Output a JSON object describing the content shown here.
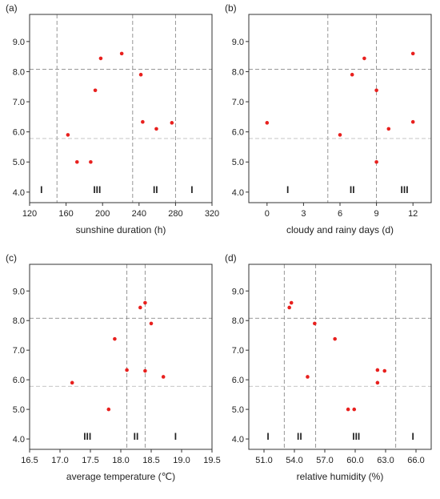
{
  "chart_data": [
    {
      "type": "scatter",
      "panel_label": "(a)",
      "xlabel": "sunshine duration (h)",
      "ylabel": "",
      "xlim": [
        120,
        320
      ],
      "ylim": [
        3.65,
        9.9
      ],
      "x_ticks": [
        120,
        160,
        200,
        240,
        280,
        320
      ],
      "x_tick_labels": [
        "120",
        "160",
        "200",
        "240",
        "280",
        "320"
      ],
      "y_ticks": [
        4,
        5,
        6,
        7,
        8,
        9
      ],
      "y_tick_labels": [
        "4.0",
        "5.0",
        "6.0",
        "7.0",
        "8.0",
        "9.0"
      ],
      "x": [
        162,
        172,
        187,
        192,
        198,
        221,
        242,
        244,
        259,
        276
      ],
      "y": [
        5.9,
        5.0,
        5.0,
        7.38,
        8.44,
        8.6,
        7.9,
        6.33,
        6.1,
        6.3
      ],
      "vlines": [
        150,
        233,
        280
      ],
      "hlines": [
        5.78,
        8.08
      ],
      "zones": [
        {
          "x": 133,
          "label": "I"
        },
        {
          "x": 194,
          "label": "III"
        },
        {
          "x": 258,
          "label": "II"
        },
        {
          "x": 298,
          "label": "I"
        }
      ]
    },
    {
      "type": "scatter",
      "panel_label": "(b)",
      "xlabel": "cloudy and rainy days (d)",
      "ylabel": "",
      "xlim": [
        -1.5,
        13.5
      ],
      "ylim": [
        3.65,
        9.9
      ],
      "x_ticks": [
        0,
        3,
        6,
        9,
        12
      ],
      "x_tick_labels": [
        "0",
        "3",
        "6",
        "9",
        "12"
      ],
      "y_ticks": [
        4,
        5,
        6,
        7,
        8,
        9
      ],
      "y_tick_labels": [
        "4.0",
        "5.0",
        "6.0",
        "7.0",
        "8.0",
        "9.0"
      ],
      "x": [
        0,
        6,
        7,
        8,
        9,
        9,
        10,
        12,
        12
      ],
      "y": [
        6.3,
        5.9,
        7.9,
        8.44,
        7.38,
        5.0,
        6.1,
        8.6,
        6.33
      ],
      "vlines": [
        5,
        9
      ],
      "hlines": [
        5.78,
        8.08
      ],
      "zones": [
        {
          "x": 1.7,
          "label": "I"
        },
        {
          "x": 7.0,
          "label": "II"
        },
        {
          "x": 11.3,
          "label": "III"
        }
      ]
    },
    {
      "type": "scatter",
      "panel_label": "(c)",
      "xlabel": "average temperature (℃)",
      "ylabel": "",
      "xlim": [
        16.5,
        19.5
      ],
      "ylim": [
        3.65,
        9.9
      ],
      "x_ticks": [
        16.5,
        17.0,
        17.5,
        18.0,
        18.5,
        19.0,
        19.5
      ],
      "x_tick_labels": [
        "16.5",
        "17.0",
        "17.5",
        "18.0",
        "18.5",
        "19.0",
        "19.5"
      ],
      "y_ticks": [
        4,
        5,
        6,
        7,
        8,
        9
      ],
      "y_tick_labels": [
        "4.0",
        "5.0",
        "6.0",
        "7.0",
        "8.0",
        "9.0"
      ],
      "x": [
        17.2,
        17.8,
        17.9,
        18.1,
        18.32,
        18.4,
        18.4,
        18.5,
        18.7
      ],
      "y": [
        5.9,
        5.0,
        7.38,
        6.33,
        8.44,
        8.6,
        6.3,
        7.9,
        6.1
      ],
      "vlines": [
        18.1,
        18.4
      ],
      "hlines": [
        5.78,
        8.08
      ],
      "zones": [
        {
          "x": 17.45,
          "label": "III"
        },
        {
          "x": 18.25,
          "label": "II"
        },
        {
          "x": 18.9,
          "label": "I"
        }
      ]
    },
    {
      "type": "scatter",
      "panel_label": "(d)",
      "xlabel": "relative humidity (%)",
      "ylabel": "",
      "xlim": [
        49.5,
        67.5
      ],
      "ylim": [
        3.65,
        9.9
      ],
      "x_ticks": [
        51,
        54,
        57,
        60,
        63,
        66
      ],
      "x_tick_labels": [
        "51.0",
        "54.0",
        "57.0",
        "60.0",
        "63.0",
        "66.0"
      ],
      "y_ticks": [
        4,
        5,
        6,
        7,
        8,
        9
      ],
      "y_tick_labels": [
        "4.0",
        "5.0",
        "6.0",
        "7.0",
        "8.0",
        "9.0"
      ],
      "x": [
        53.5,
        53.7,
        55.3,
        56.0,
        58.0,
        59.3,
        59.9,
        62.2,
        62.2,
        62.9
      ],
      "y": [
        8.44,
        8.6,
        6.1,
        7.9,
        7.38,
        5.0,
        5.0,
        6.33,
        5.9,
        6.3
      ],
      "vlines": [
        53.0,
        56.1,
        64.0
      ],
      "hlines": [
        5.78,
        8.08
      ],
      "zones": [
        {
          "x": 51.4,
          "label": "I"
        },
        {
          "x": 54.5,
          "label": "II"
        },
        {
          "x": 60.1,
          "label": "III"
        },
        {
          "x": 65.7,
          "label": "I"
        }
      ]
    }
  ],
  "colors": {
    "point": "#e8201e",
    "vline": "#8a8a8a",
    "hline_upper": "#8a8a8a",
    "hline_lower": "#bdbdbd",
    "axis": "#333333"
  }
}
